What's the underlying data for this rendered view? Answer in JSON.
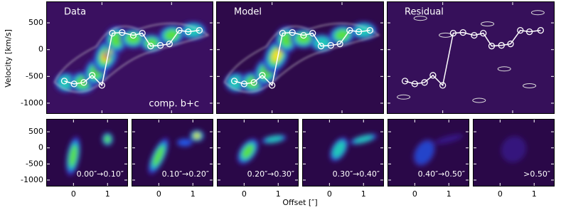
{
  "chart_data": {
    "type": "pv-diagram",
    "y_label": "Velocity [km/s]",
    "x_label": "Offset [″]",
    "xlim": [
      -0.8,
      1.6
    ],
    "ylim": [
      -1200,
      900
    ],
    "yticks": [
      500,
      0,
      -500,
      -1000
    ],
    "xticks": [
      0,
      1
    ],
    "top_panels": [
      {
        "title": "Data",
        "note": "comp. b+c"
      },
      {
        "title": "Model"
      },
      {
        "title": "Residual"
      }
    ],
    "bottom_panels": [
      "0.00″→0.10″",
      "0.10″→0.20″",
      "0.20″→0.30″",
      "0.30″→0.40″",
      "0.40″→0.50″",
      ">0.50″"
    ],
    "points": {
      "color": "#ffffff",
      "x": [
        -0.54,
        -0.4,
        -0.26,
        -0.14,
        0.0,
        0.15,
        0.29,
        0.45,
        0.58,
        0.7,
        0.84,
        0.97,
        1.11,
        1.24,
        1.4
      ],
      "y": [
        -587,
        -640,
        -613,
        -480,
        -667,
        307,
        320,
        267,
        307,
        67,
        80,
        107,
        360,
        333,
        360
      ]
    }
  }
}
